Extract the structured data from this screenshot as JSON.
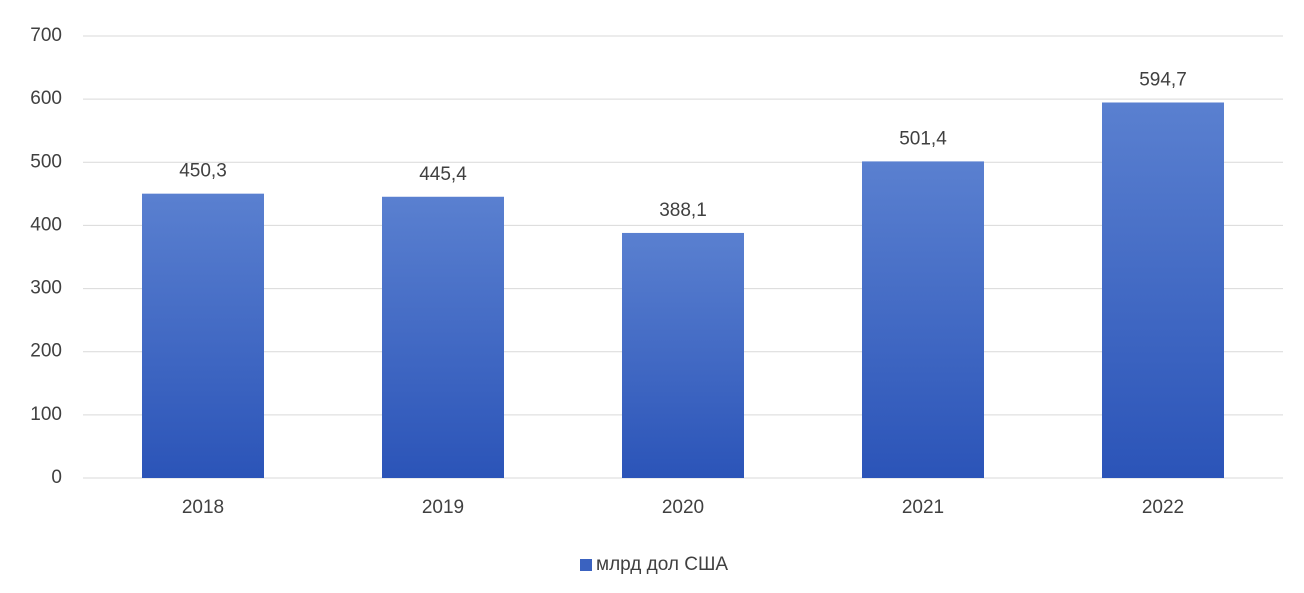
{
  "chart_data": {
    "type": "bar",
    "categories": [
      "2018",
      "2019",
      "2020",
      "2021",
      "2022"
    ],
    "series": [
      {
        "name": "млрд дол США",
        "color": "#3a62c0",
        "values": [
          450.3,
          445.4,
          388.1,
          501.4,
          594.7
        ],
        "value_labels": [
          "450,3",
          "445,4",
          "388,1",
          "501,4",
          "594,7"
        ]
      }
    ],
    "ylim": [
      0,
      700
    ],
    "yticks": [
      0,
      100,
      200,
      300,
      400,
      500,
      600,
      700
    ],
    "grid": true,
    "legend": "bottom"
  }
}
